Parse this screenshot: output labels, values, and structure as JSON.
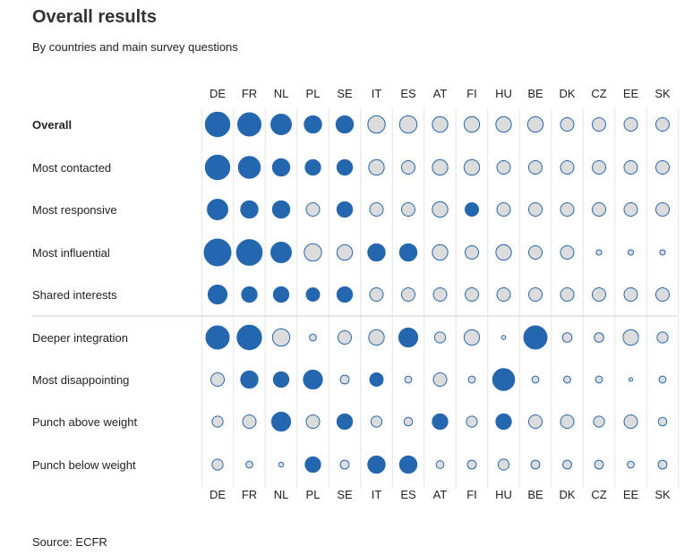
{
  "title": "Overall results",
  "subtitle": "By countries and main survey questions",
  "source": "Source: ECFR",
  "colors": {
    "high": "#2467ae",
    "low_fill": "#dcdcdc",
    "low_stroke": "#2467ae",
    "gridline": "#e6e6e6",
    "separator": "#cccccc"
  },
  "chart_data": {
    "type": "bubble-matrix",
    "columns": [
      "DE",
      "FR",
      "NL",
      "PL",
      "SE",
      "IT",
      "ES",
      "AT",
      "FI",
      "HU",
      "BE",
      "DK",
      "CZ",
      "EE",
      "SK"
    ],
    "rows": [
      {
        "label": "Overall",
        "bold": true,
        "group": 1,
        "values": [
          10,
          9,
          7,
          5,
          5,
          5,
          5,
          4,
          4,
          4,
          4,
          3,
          3,
          3,
          3
        ],
        "highlight": [
          true,
          true,
          true,
          true,
          true,
          false,
          false,
          false,
          false,
          false,
          false,
          false,
          false,
          false,
          false
        ]
      },
      {
        "label": "Most contacted",
        "bold": false,
        "group": 1,
        "values": [
          10,
          8,
          5,
          4,
          4,
          4,
          3,
          4,
          4,
          3,
          3,
          3,
          3,
          3,
          3
        ],
        "highlight": [
          true,
          true,
          true,
          true,
          true,
          false,
          false,
          false,
          false,
          false,
          false,
          false,
          false,
          false,
          false
        ]
      },
      {
        "label": "Most responsive",
        "bold": false,
        "group": 1,
        "values": [
          7,
          5,
          5,
          3,
          4,
          3,
          3,
          4,
          3,
          3,
          3,
          3,
          3,
          3,
          3
        ],
        "highlight": [
          true,
          true,
          true,
          false,
          true,
          false,
          false,
          false,
          true,
          false,
          false,
          false,
          false,
          false,
          false
        ]
      },
      {
        "label": "Most influential",
        "bold": false,
        "group": 1,
        "values": [
          12,
          11,
          7,
          5,
          4,
          5,
          5,
          4,
          3,
          4,
          3,
          3,
          0.5,
          0.5,
          0.5
        ],
        "highlight": [
          true,
          true,
          true,
          false,
          false,
          true,
          true,
          false,
          false,
          false,
          false,
          false,
          false,
          false,
          false
        ]
      },
      {
        "label": "Shared interests",
        "bold": false,
        "group": 1,
        "values": [
          6,
          4,
          4,
          3,
          4,
          3,
          3,
          3,
          3,
          3,
          3,
          3,
          3,
          3,
          3
        ],
        "highlight": [
          true,
          true,
          true,
          true,
          true,
          false,
          false,
          false,
          false,
          false,
          false,
          false,
          false,
          false,
          false
        ]
      },
      {
        "label": "Deeper integration",
        "bold": false,
        "group": 2,
        "values": [
          9,
          10,
          5,
          0.8,
          3,
          4,
          6,
          2,
          4,
          0.3,
          9,
          1.5,
          1.5,
          4,
          2
        ],
        "highlight": [
          true,
          true,
          false,
          false,
          false,
          false,
          true,
          false,
          false,
          false,
          true,
          false,
          false,
          false,
          false
        ]
      },
      {
        "label": "Most disappointing",
        "bold": false,
        "group": 2,
        "values": [
          3,
          5,
          4,
          6,
          1.3,
          3,
          0.8,
          3,
          0.8,
          8,
          0.8,
          0.8,
          0.8,
          0.2,
          0.8
        ],
        "highlight": [
          false,
          true,
          true,
          true,
          false,
          true,
          false,
          false,
          false,
          true,
          false,
          false,
          false,
          false,
          false
        ]
      },
      {
        "label": "Punch above weight",
        "bold": false,
        "group": 2,
        "values": [
          2,
          3,
          6,
          3,
          4,
          2,
          1.2,
          4,
          2,
          4,
          3,
          3,
          2,
          3,
          1.2
        ],
        "highlight": [
          false,
          false,
          true,
          false,
          true,
          false,
          false,
          true,
          false,
          true,
          false,
          false,
          false,
          false,
          false
        ]
      },
      {
        "label": "Punch below weight",
        "bold": false,
        "group": 2,
        "values": [
          2,
          0.8,
          0.4,
          4,
          1.3,
          5,
          5,
          1,
          1.3,
          2,
          1.3,
          1.3,
          1.3,
          0.8,
          1.3
        ],
        "highlight": [
          false,
          false,
          false,
          true,
          false,
          true,
          true,
          false,
          false,
          false,
          false,
          false,
          false,
          false,
          false
        ]
      }
    ]
  }
}
